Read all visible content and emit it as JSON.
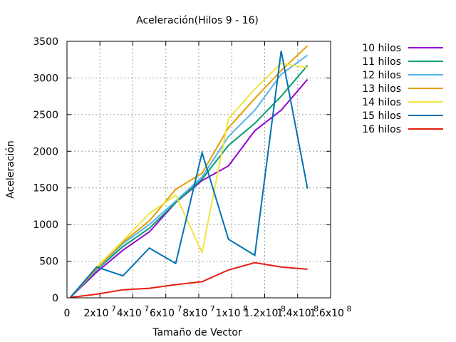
{
  "chart_data": {
    "type": "line",
    "title": "Aceleración(Hilos 9 - 16)",
    "xlabel": "Tamaño de Vector",
    "ylabel": "Aceleración",
    "xlim": [
      0,
      160000000
    ],
    "ylim": [
      0,
      3500
    ],
    "grid": true,
    "legend_position": "outside-right",
    "x_ticks": [
      {
        "value": 0,
        "mant": "0",
        "exp": ""
      },
      {
        "value": 20000000,
        "mant": "2x10",
        "exp": "7"
      },
      {
        "value": 40000000,
        "mant": "4x10",
        "exp": "7"
      },
      {
        "value": 60000000,
        "mant": "6x10",
        "exp": "7"
      },
      {
        "value": 80000000,
        "mant": "8x10",
        "exp": "7"
      },
      {
        "value": 100000000,
        "mant": "1x10",
        "exp": "8"
      },
      {
        "value": 120000000,
        "mant": "1.2x10",
        "exp": "8"
      },
      {
        "value": 140000000,
        "mant": "1.4x10",
        "exp": "8"
      },
      {
        "value": 160000000,
        "mant": "1.6x10",
        "exp": "8"
      }
    ],
    "y_ticks": [
      {
        "value": 0,
        "label": "0"
      },
      {
        "value": 500,
        "label": "500"
      },
      {
        "value": 1000,
        "label": "1000"
      },
      {
        "value": 1500,
        "label": "1500"
      },
      {
        "value": 2000,
        "label": "2000"
      },
      {
        "value": 2500,
        "label": "2500"
      },
      {
        "value": 3000,
        "label": "3000"
      },
      {
        "value": 3500,
        "label": "3500"
      }
    ],
    "x": [
      2000000,
      18000000,
      34000000,
      50000000,
      66000000,
      82000000,
      98000000,
      114000000,
      130000000,
      146000000
    ],
    "series": [
      {
        "name": "10 hilos",
        "color": "#9400d3",
        "values": [
          5,
          350,
          650,
          900,
          1300,
          1600,
          1800,
          2280,
          2560,
          2980
        ]
      },
      {
        "name": "11 hilos",
        "color": "#009e73",
        "values": [
          5,
          380,
          700,
          950,
          1300,
          1620,
          2080,
          2380,
          2750,
          3170
        ]
      },
      {
        "name": "12 hilos",
        "color": "#56b4e9",
        "values": [
          5,
          390,
          740,
          1000,
          1320,
          1650,
          2200,
          2560,
          3050,
          3310
        ]
      },
      {
        "name": "13 hilos",
        "color": "#e69f00",
        "values": [
          5,
          400,
          760,
          1050,
          1480,
          1700,
          2320,
          2720,
          3100,
          3440
        ]
      },
      {
        "name": "14 hilos",
        "color": "#f0e442",
        "values": [
          5,
          420,
          780,
          1150,
          1400,
          620,
          2440,
          2850,
          3200,
          3140
        ]
      },
      {
        "name": "15 hilos",
        "color": "#0072b2",
        "values": [
          5,
          420,
          300,
          680,
          470,
          1980,
          800,
          580,
          3370,
          1490
        ]
      },
      {
        "name": "16 hilos",
        "color": "#e51e10",
        "values": [
          5,
          50,
          110,
          130,
          180,
          220,
          380,
          480,
          420,
          390
        ]
      }
    ]
  }
}
